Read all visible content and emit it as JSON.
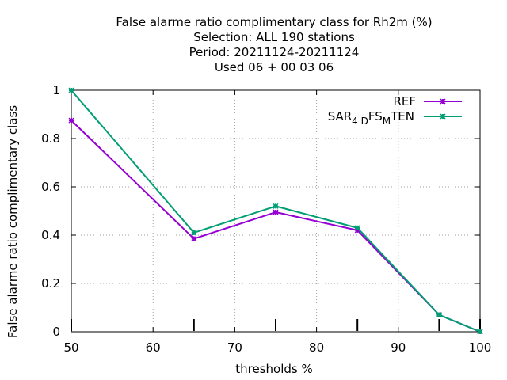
{
  "chart_data": {
    "type": "line",
    "title_lines": [
      "False alarme ratio complimentary class  for Rh2m (%)",
      "Selection: ALL    190 stations",
      "Period: 20211124-20211124",
      "Used  06 + 00 03 06"
    ],
    "xlabel": "thresholds %",
    "ylabel": "False alarme ratio complimentary class",
    "xlim": [
      50,
      100
    ],
    "ylim": [
      0,
      1
    ],
    "xticks": [
      "50",
      "60",
      "70",
      "80",
      "90",
      "100"
    ],
    "yticks": [
      "0",
      "0.2",
      "0.4",
      "0.6",
      "0.8",
      "1"
    ],
    "grid": true,
    "legend_position": "top-right",
    "series": [
      {
        "name": "REF",
        "color": "#9400d3",
        "x": [
          50,
          65,
          75,
          85,
          95,
          100
        ],
        "y": [
          0.875,
          0.385,
          0.495,
          0.42,
          0.07,
          0.0
        ]
      },
      {
        "name_parts": [
          "SAR",
          "4 D",
          "FS",
          "M",
          "TEN"
        ],
        "color": "#009e73",
        "x": [
          50,
          65,
          75,
          85,
          95,
          100
        ],
        "y": [
          1.0,
          0.41,
          0.52,
          0.43,
          0.07,
          0.0
        ]
      }
    ],
    "x_tick_marks": [
      50,
      65,
      75,
      85,
      95,
      100
    ]
  }
}
